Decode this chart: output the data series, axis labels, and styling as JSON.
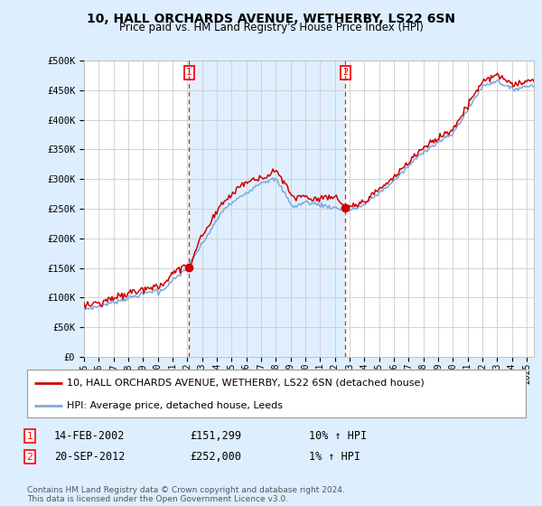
{
  "title": "10, HALL ORCHARDS AVENUE, WETHERBY, LS22 6SN",
  "subtitle": "Price paid vs. HM Land Registry's House Price Index (HPI)",
  "ylabel_ticks": [
    "£0",
    "£50K",
    "£100K",
    "£150K",
    "£200K",
    "£250K",
    "£300K",
    "£350K",
    "£400K",
    "£450K",
    "£500K"
  ],
  "ytick_values": [
    0,
    50000,
    100000,
    150000,
    200000,
    250000,
    300000,
    350000,
    400000,
    450000,
    500000
  ],
  "xlim_start": 1995.0,
  "xlim_end": 2025.5,
  "ylim_min": 0,
  "ylim_max": 500000,
  "transaction1": {
    "date_num": 2002.12,
    "price": 151299,
    "label": "1"
  },
  "transaction2": {
    "date_num": 2012.72,
    "price": 252000,
    "label": "2"
  },
  "legend_property_label": "10, HALL ORCHARDS AVENUE, WETHERBY, LS22 6SN (detached house)",
  "legend_hpi_label": "HPI: Average price, detached house, Leeds",
  "table_rows": [
    {
      "num": "1",
      "date": "14-FEB-2002",
      "price": "£151,299",
      "hpi": "10% ↑ HPI"
    },
    {
      "num": "2",
      "date": "20-SEP-2012",
      "price": "£252,000",
      "hpi": "1% ↑ HPI"
    }
  ],
  "footnote": "Contains HM Land Registry data © Crown copyright and database right 2024.\nThis data is licensed under the Open Government Licence v3.0.",
  "property_color": "#cc0000",
  "hpi_color": "#7aaadd",
  "shade_color": "#ddeeff",
  "background_color": "#ddeeff",
  "plot_bg_color": "#ffffff",
  "grid_color": "#cccccc",
  "xticks": [
    1995,
    1996,
    1997,
    1998,
    1999,
    2000,
    2001,
    2002,
    2003,
    2004,
    2005,
    2006,
    2007,
    2008,
    2009,
    2010,
    2011,
    2012,
    2013,
    2014,
    2015,
    2016,
    2017,
    2018,
    2019,
    2020,
    2021,
    2022,
    2023,
    2024,
    2025
  ]
}
